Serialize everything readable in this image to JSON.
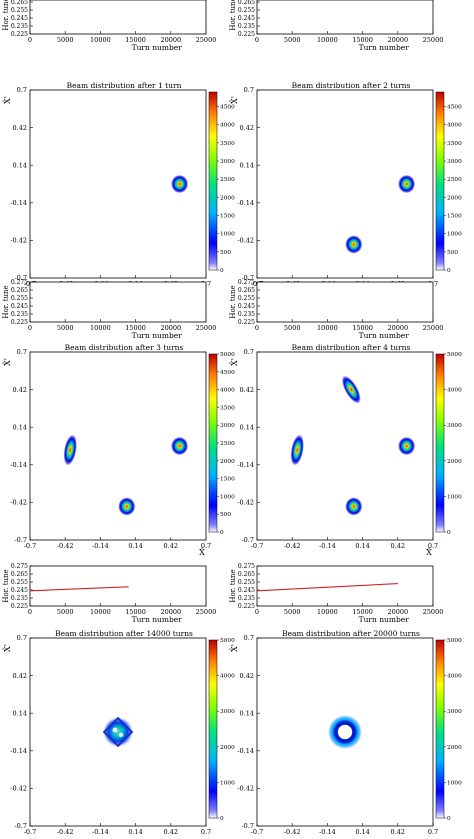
{
  "figure": {
    "tune_panel": {
      "xlabel": "Turn number",
      "ylabel": "Hor. tune",
      "x_ticks": [
        "0",
        "5000",
        "10000",
        "15000",
        "20000",
        "25000"
      ],
      "y_ticks": [
        "0.225",
        "0.235",
        "0.245",
        "0.255",
        "0.265",
        "0.275"
      ],
      "line_color": "#d42020"
    },
    "beam_panel": {
      "xlabel": "X̂",
      "ylabel": "X̂'",
      "x_ticks": [
        "-0.7",
        "-0.42",
        "-0.14",
        "0.14",
        "0.42",
        "0.7"
      ],
      "y_ticks": [
        "-0.7",
        "-0.42",
        "-0.14",
        "0.14",
        "0.42",
        "0.7"
      ],
      "colormap": "jet"
    },
    "rows": [
      [
        {
          "title_prefix": "Beam distribution after",
          "title_count": "1 turn",
          "cbar_ticks": [
            "0",
            "500",
            "1000",
            "1500",
            "2000",
            "2500",
            "3000",
            "3500",
            "4000",
            "4500"
          ],
          "cbar_max": 4900
        },
        {
          "title_prefix": "Beam distribution after",
          "title_count": "2 turns",
          "cbar_ticks": [
            "0",
            "500",
            "1000",
            "1500",
            "2000",
            "2500",
            "3000",
            "3500",
            "4000",
            "4500"
          ],
          "cbar_max": 4900
        }
      ],
      [
        {
          "title_prefix": "Beam distribution after",
          "title_count": "3 turns",
          "cbar_ticks": [
            "0",
            "500",
            "1000",
            "1500",
            "2000",
            "2500",
            "3000",
            "3500",
            "4000",
            "4500",
            "5000"
          ],
          "cbar_max": 5000
        },
        {
          "title_prefix": "Beam distribution after",
          "title_count": "4 turns",
          "cbar_ticks": [
            "0",
            "1000",
            "2000",
            "3000",
            "4000",
            "5000"
          ],
          "cbar_max": 5000
        }
      ],
      [
        {
          "title_prefix": "Beam distribution after",
          "title_count": "14000 turns",
          "cbar_ticks": [
            "0",
            "1000",
            "2000",
            "3000",
            "4000",
            "5000"
          ],
          "cbar_max": 5000
        },
        {
          "title_prefix": "Beam distribution after",
          "title_count": "20000 turns",
          "cbar_ticks": [
            "0",
            "1000",
            "2000",
            "3000",
            "4000",
            "5000"
          ],
          "cbar_max": 5000
        }
      ]
    ]
  },
  "chart_data": [
    {
      "type": "line",
      "panel": "tune-1-turn",
      "xlabel": "Turn number",
      "ylabel": "Hor. tune",
      "xlim": [
        0,
        25000
      ],
      "ylim": [
        0.225,
        0.275
      ],
      "x": [],
      "y": []
    },
    {
      "type": "line",
      "panel": "tune-2-turns",
      "xlabel": "Turn number",
      "ylabel": "Hor. tune",
      "xlim": [
        0,
        25000
      ],
      "ylim": [
        0.225,
        0.275
      ],
      "x": [],
      "y": []
    },
    {
      "type": "line",
      "panel": "tune-3-turns",
      "xlabel": "Turn number",
      "ylabel": "Hor. tune",
      "xlim": [
        0,
        25000
      ],
      "ylim": [
        0.225,
        0.275
      ],
      "x": [],
      "y": []
    },
    {
      "type": "line",
      "panel": "tune-4-turns",
      "xlabel": "Turn number",
      "ylabel": "Hor. tune",
      "xlim": [
        0,
        25000
      ],
      "ylim": [
        0.225,
        0.275
      ],
      "x": [],
      "y": []
    },
    {
      "type": "line",
      "panel": "tune-14000-turns",
      "xlabel": "Turn number",
      "ylabel": "Hor. tune",
      "xlim": [
        0,
        25000
      ],
      "ylim": [
        0.225,
        0.275
      ],
      "x": [
        0,
        14000
      ],
      "y": [
        0.244,
        0.249
      ]
    },
    {
      "type": "line",
      "panel": "tune-20000-turns",
      "xlabel": "Turn number",
      "ylabel": "Hor. tune",
      "xlim": [
        0,
        25000
      ],
      "ylim": [
        0.225,
        0.275
      ],
      "x": [
        0,
        20000
      ],
      "y": [
        0.244,
        0.253
      ]
    },
    {
      "type": "heatmap",
      "panel": "beam-1-turn",
      "title": "Beam distribution after 1 turn",
      "xlabel": "X̂",
      "ylabel": "X̂'",
      "xlim": [
        -0.7,
        0.7
      ],
      "ylim": [
        -0.7,
        0.7
      ],
      "spots": [
        {
          "x": 0.49,
          "y": 0.0,
          "sx": 0.035,
          "sy": 0.035,
          "rot": 0
        }
      ]
    },
    {
      "type": "heatmap",
      "panel": "beam-2-turns",
      "title": "Beam distribution after 2 turns",
      "xlabel": "X̂",
      "ylabel": "X̂'",
      "xlim": [
        -0.7,
        0.7
      ],
      "ylim": [
        -0.7,
        0.7
      ],
      "spots": [
        {
          "x": 0.49,
          "y": 0.0,
          "sx": 0.035,
          "sy": 0.035,
          "rot": 0
        },
        {
          "x": 0.07,
          "y": -0.45,
          "sx": 0.035,
          "sy": 0.035,
          "rot": 0
        }
      ]
    },
    {
      "type": "heatmap",
      "panel": "beam-3-turns",
      "title": "Beam distribution after 3 turns",
      "xlabel": "X̂",
      "ylabel": "X̂'",
      "xlim": [
        -0.7,
        0.7
      ],
      "ylim": [
        -0.7,
        0.7
      ],
      "spots": [
        {
          "x": 0.49,
          "y": 0.0,
          "sx": 0.035,
          "sy": 0.035,
          "rot": 0
        },
        {
          "x": 0.07,
          "y": -0.45,
          "sx": 0.035,
          "sy": 0.035,
          "rot": 0
        },
        {
          "x": -0.38,
          "y": -0.03,
          "sx": 0.025,
          "sy": 0.06,
          "rot": 10
        }
      ]
    },
    {
      "type": "heatmap",
      "panel": "beam-4-turns",
      "title": "Beam distribution after 4 turns",
      "xlabel": "X̂",
      "ylabel": "X̂'",
      "xlim": [
        -0.7,
        0.7
      ],
      "ylim": [
        -0.7,
        0.7
      ],
      "spots": [
        {
          "x": 0.49,
          "y": 0.0,
          "sx": 0.035,
          "sy": 0.035,
          "rot": 0
        },
        {
          "x": 0.07,
          "y": -0.45,
          "sx": 0.035,
          "sy": 0.035,
          "rot": 0
        },
        {
          "x": -0.38,
          "y": -0.03,
          "sx": 0.025,
          "sy": 0.06,
          "rot": 10
        },
        {
          "x": 0.05,
          "y": 0.42,
          "sx": 0.025,
          "sy": 0.06,
          "rot": -30
        }
      ]
    },
    {
      "type": "heatmap",
      "panel": "beam-14000-turns",
      "title": "Beam distribution after 14000 turns",
      "xlabel": "X̂",
      "ylabel": "X̂'",
      "xlim": [
        -0.7,
        0.7
      ],
      "ylim": [
        -0.7,
        0.7
      ],
      "shape": "diamond",
      "center": [
        0.0,
        0.0
      ],
      "radius": 0.13
    },
    {
      "type": "heatmap",
      "panel": "beam-20000-turns",
      "title": "Beam distribution after 20000 turns",
      "xlabel": "X̂",
      "ylabel": "X̂'",
      "xlim": [
        -0.7,
        0.7
      ],
      "ylim": [
        -0.7,
        0.7
      ],
      "shape": "ring",
      "center": [
        0.0,
        0.0
      ],
      "radius": 0.07
    }
  ]
}
